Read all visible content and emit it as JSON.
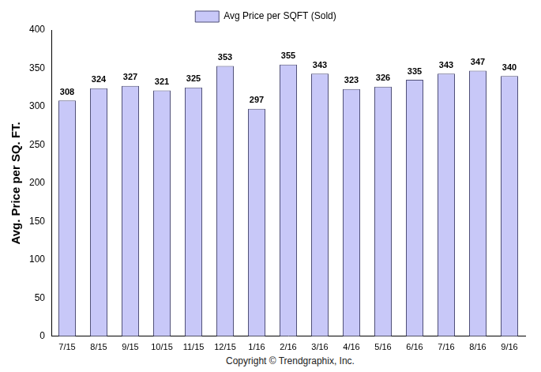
{
  "chart_data": {
    "type": "bar",
    "ylabel": "Avg. Price per SQ. FT.",
    "annotations": [
      "Copyright © Trendgraphix, Inc."
    ],
    "categories": [
      "7/15",
      "8/15",
      "9/15",
      "10/15",
      "11/15",
      "12/15",
      "1/16",
      "2/16",
      "3/16",
      "4/16",
      "5/16",
      "6/16",
      "7/16",
      "8/16",
      "9/16"
    ],
    "series": [
      {
        "name": "Avg Price per SQFT (Sold)",
        "color": "#c8c8f8",
        "values": [
          308,
          324,
          327,
          321,
          325,
          353,
          297,
          355,
          343,
          323,
          326,
          335,
          343,
          347,
          340
        ]
      }
    ],
    "ylim": [
      0,
      400
    ],
    "yticks": [
      0,
      50,
      100,
      150,
      200,
      250,
      300,
      350,
      400
    ],
    "grid": false,
    "legend": "top",
    "data_labels": true
  }
}
